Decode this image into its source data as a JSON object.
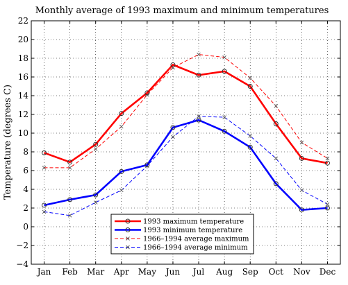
{
  "chart_data": {
    "type": "line",
    "title": "Monthly average of 1993 maximum and minimum temperatures",
    "xlabel": "",
    "ylabel": "Temperature (degrees C)",
    "categories": [
      "Jan",
      "Feb",
      "Mar",
      "Apr",
      "May",
      "Jun",
      "Jul",
      "Aug",
      "Sep",
      "Oct",
      "Nov",
      "Dec"
    ],
    "ylim": [
      -4,
      22
    ],
    "yticks": [
      -4,
      -2,
      0,
      2,
      4,
      6,
      8,
      10,
      12,
      14,
      16,
      18,
      20,
      22
    ],
    "grid": true,
    "legend_position": "bottom-center",
    "series": [
      {
        "name": "1993 maximum temperature",
        "values": [
          7.9,
          6.9,
          8.8,
          12.1,
          14.3,
          17.3,
          16.2,
          16.6,
          15.0,
          11.0,
          7.3,
          6.8
        ],
        "color": "#ff0000",
        "style": "solid-thick",
        "marker": "circle"
      },
      {
        "name": "1993 minimum temperature",
        "values": [
          2.3,
          2.9,
          3.4,
          5.9,
          6.6,
          10.6,
          11.4,
          10.2,
          8.5,
          4.6,
          1.8,
          2.0
        ],
        "color": "#0000ff",
        "style": "solid-thick",
        "marker": "circle"
      },
      {
        "name": "1966–1994 average maximum",
        "values": [
          6.3,
          6.3,
          8.3,
          10.7,
          14.1,
          17.0,
          18.4,
          18.1,
          15.9,
          12.9,
          9.0,
          7.3
        ],
        "color": "#ff0000",
        "style": "dashed",
        "marker": "x"
      },
      {
        "name": "1966–1994 average minimum",
        "values": [
          1.6,
          1.2,
          2.6,
          3.9,
          6.5,
          9.6,
          11.8,
          11.7,
          9.7,
          7.3,
          3.9,
          2.4
        ],
        "color": "#0000ff",
        "style": "dashed",
        "marker": "x"
      }
    ]
  }
}
